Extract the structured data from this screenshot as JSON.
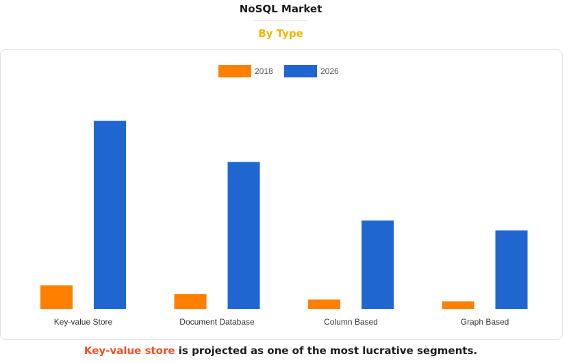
{
  "header": {
    "title": "NoSQL Market",
    "subtitle": "By Type"
  },
  "caption": {
    "highlight": "Key-value store",
    "rest": " is projected as one of the most lucrative segments."
  },
  "colors": {
    "series_2018": "#ff8000",
    "series_2026": "#1f66d1",
    "accent_subtitle": "#f0b400",
    "accent_caption": "#f04e23"
  },
  "chart_data": {
    "type": "bar",
    "title": "",
    "xlabel": "",
    "ylabel": "",
    "grid": false,
    "legend_position": "top-center",
    "categories": [
      "Key-value Store",
      "Document Database",
      "Column Based",
      "Graph Based"
    ],
    "series": [
      {
        "name": "2018",
        "color": "#ff8000",
        "values": [
          38,
          24,
          15,
          12
        ]
      },
      {
        "name": "2026",
        "color": "#1f66d1",
        "values": [
          302,
          236,
          142,
          126
        ]
      }
    ],
    "ylim": [
      0,
      330
    ]
  }
}
